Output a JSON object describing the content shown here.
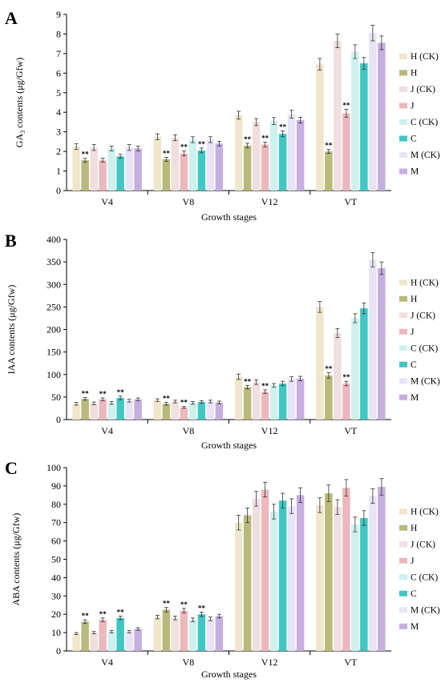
{
  "legend_labels": [
    "H (CK)",
    "H",
    "J (CK)",
    "J",
    "C (CK)",
    "C",
    "M (CK)",
    "M"
  ],
  "series_colors": [
    "#efe6cb",
    "#b9b97a",
    "#f1dede",
    "#ecb8bd",
    "#cdf1ee",
    "#41c7c3",
    "#e8e3f6",
    "#c6aee0"
  ],
  "chart_data": [
    {
      "type": "bar",
      "panel_letter": "A",
      "ylabel": "GA3 contents (μg/Gfw)",
      "ylabel_main": "GA",
      "ylabel_sub": "3",
      "ylabel_rest": " contents (μg/Gfw)",
      "xlabel": "Growth stages",
      "categories": [
        "V4",
        "V8",
        "V12",
        "VT"
      ],
      "ylim": [
        0,
        9
      ],
      "yticks": [
        "0",
        "1",
        "2",
        "3",
        "4",
        "5",
        "6",
        "7",
        "8",
        "9"
      ],
      "legend_position": "right",
      "grid": false,
      "series": [
        {
          "name": "H (CK)",
          "values": [
            2.25,
            2.75,
            3.85,
            6.45
          ],
          "errors": [
            0.15,
            0.15,
            0.2,
            0.3
          ],
          "sig": [
            false,
            false,
            false,
            false
          ]
        },
        {
          "name": "H",
          "values": [
            1.55,
            1.6,
            2.3,
            2.0
          ],
          "errors": [
            0.1,
            0.1,
            0.12,
            0.1
          ],
          "sig": [
            true,
            true,
            true,
            true
          ]
        },
        {
          "name": "J (CK)",
          "values": [
            2.2,
            2.7,
            3.5,
            7.65
          ],
          "errors": [
            0.15,
            0.15,
            0.18,
            0.35
          ],
          "sig": [
            false,
            false,
            false,
            false
          ]
        },
        {
          "name": "J",
          "values": [
            1.55,
            1.9,
            2.35,
            3.95
          ],
          "errors": [
            0.1,
            0.12,
            0.12,
            0.2
          ],
          "sig": [
            false,
            true,
            true,
            true
          ]
        },
        {
          "name": "C (CK)",
          "values": [
            2.15,
            2.6,
            3.55,
            7.1
          ],
          "errors": [
            0.12,
            0.15,
            0.18,
            0.35
          ],
          "sig": [
            false,
            false,
            false,
            false
          ]
        },
        {
          "name": "C",
          "values": [
            1.75,
            2.05,
            2.9,
            6.5
          ],
          "errors": [
            0.1,
            0.12,
            0.15,
            0.3
          ],
          "sig": [
            false,
            true,
            true,
            false
          ]
        },
        {
          "name": "M (CK)",
          "values": [
            2.2,
            2.6,
            3.9,
            8.05
          ],
          "errors": [
            0.15,
            0.15,
            0.2,
            0.4
          ],
          "sig": [
            false,
            false,
            false,
            false
          ]
        },
        {
          "name": "M",
          "values": [
            2.15,
            2.4,
            3.6,
            7.55
          ],
          "errors": [
            0.12,
            0.12,
            0.15,
            0.35
          ],
          "sig": [
            false,
            false,
            false,
            false
          ]
        }
      ]
    },
    {
      "type": "bar",
      "panel_letter": "B",
      "ylabel": "IAA contents (μg/Gfw)",
      "xlabel": "Growth stages",
      "categories": [
        "V4",
        "V8",
        "V12",
        "VT"
      ],
      "ylim": [
        0,
        400
      ],
      "yticks": [
        "0",
        "50",
        "100",
        "150",
        "200",
        "250",
        "300",
        "350",
        "400"
      ],
      "legend_position": "right",
      "grid": false,
      "series": [
        {
          "name": "H (CK)",
          "values": [
            35,
            43,
            95,
            250
          ],
          "errors": [
            3,
            3,
            6,
            12
          ],
          "sig": [
            false,
            false,
            false,
            false
          ]
        },
        {
          "name": "H",
          "values": [
            46,
            35,
            72,
            98
          ],
          "errors": [
            3,
            3,
            4,
            6
          ],
          "sig": [
            true,
            true,
            true,
            true
          ]
        },
        {
          "name": "J (CK)",
          "values": [
            36,
            40,
            83,
            192
          ],
          "errors": [
            3,
            3,
            5,
            10
          ],
          "sig": [
            false,
            false,
            false,
            false
          ]
        },
        {
          "name": "J",
          "values": [
            45,
            27,
            62,
            80
          ],
          "errors": [
            3,
            2,
            4,
            5
          ],
          "sig": [
            true,
            true,
            true,
            true
          ]
        },
        {
          "name": "C (CK)",
          "values": [
            37,
            37,
            76,
            225
          ],
          "errors": [
            3,
            3,
            4,
            10
          ],
          "sig": [
            false,
            false,
            false,
            false
          ]
        },
        {
          "name": "C",
          "values": [
            48,
            39,
            80,
            247
          ],
          "errors": [
            4,
            3,
            5,
            12
          ],
          "sig": [
            true,
            false,
            false,
            false
          ]
        },
        {
          "name": "M (CK)",
          "values": [
            42,
            40,
            90,
            355
          ],
          "errors": [
            3,
            3,
            5,
            16
          ],
          "sig": [
            false,
            false,
            false,
            false
          ]
        },
        {
          "name": "M",
          "values": [
            45,
            38,
            91,
            336
          ],
          "errors": [
            3,
            3,
            5,
            14
          ],
          "sig": [
            false,
            false,
            false,
            false
          ]
        }
      ]
    },
    {
      "type": "bar",
      "panel_letter": "C",
      "ylabel": "ABA contents (μg/Gfw)",
      "xlabel": "Growth stages",
      "categories": [
        "V4",
        "V8",
        "V12",
        "VT"
      ],
      "ylim": [
        0,
        100
      ],
      "yticks": [
        "0",
        "10",
        "20",
        "30",
        "40",
        "50",
        "60",
        "70",
        "80",
        "90",
        "100"
      ],
      "legend_position": "right",
      "grid": false,
      "series": [
        {
          "name": "H (CK)",
          "values": [
            9.5,
            18.5,
            70,
            79.5
          ],
          "errors": [
            0.5,
            1.0,
            4,
            4
          ],
          "sig": [
            false,
            false,
            false,
            false
          ]
        },
        {
          "name": "H",
          "values": [
            16,
            22.5,
            74,
            86
          ],
          "errors": [
            1.0,
            1.2,
            4,
            4.5
          ],
          "sig": [
            true,
            true,
            false,
            false
          ]
        },
        {
          "name": "J (CK)",
          "values": [
            10,
            18,
            83,
            78.5
          ],
          "errors": [
            0.6,
            1.0,
            4,
            4
          ],
          "sig": [
            false,
            false,
            false,
            false
          ]
        },
        {
          "name": "J",
          "values": [
            17,
            22,
            88,
            89
          ],
          "errors": [
            1.0,
            1.2,
            4,
            4.5
          ],
          "sig": [
            true,
            true,
            false,
            false
          ]
        },
        {
          "name": "C (CK)",
          "values": [
            10.5,
            17,
            76,
            69
          ],
          "errors": [
            0.6,
            1.0,
            4,
            4
          ],
          "sig": [
            false,
            false,
            false,
            false
          ]
        },
        {
          "name": "C",
          "values": [
            18,
            20,
            82,
            72.5
          ],
          "errors": [
            1.0,
            1.2,
            4,
            4
          ],
          "sig": [
            true,
            true,
            false,
            false
          ]
        },
        {
          "name": "M (CK)",
          "values": [
            10.5,
            17.5,
            79,
            84.5
          ],
          "errors": [
            0.6,
            1.0,
            4,
            4
          ],
          "sig": [
            false,
            false,
            false,
            false
          ]
        },
        {
          "name": "M",
          "values": [
            12,
            19,
            85,
            89.5
          ],
          "errors": [
            0.7,
            1.0,
            4,
            4.5
          ],
          "sig": [
            false,
            false,
            false,
            false
          ]
        }
      ]
    }
  ]
}
